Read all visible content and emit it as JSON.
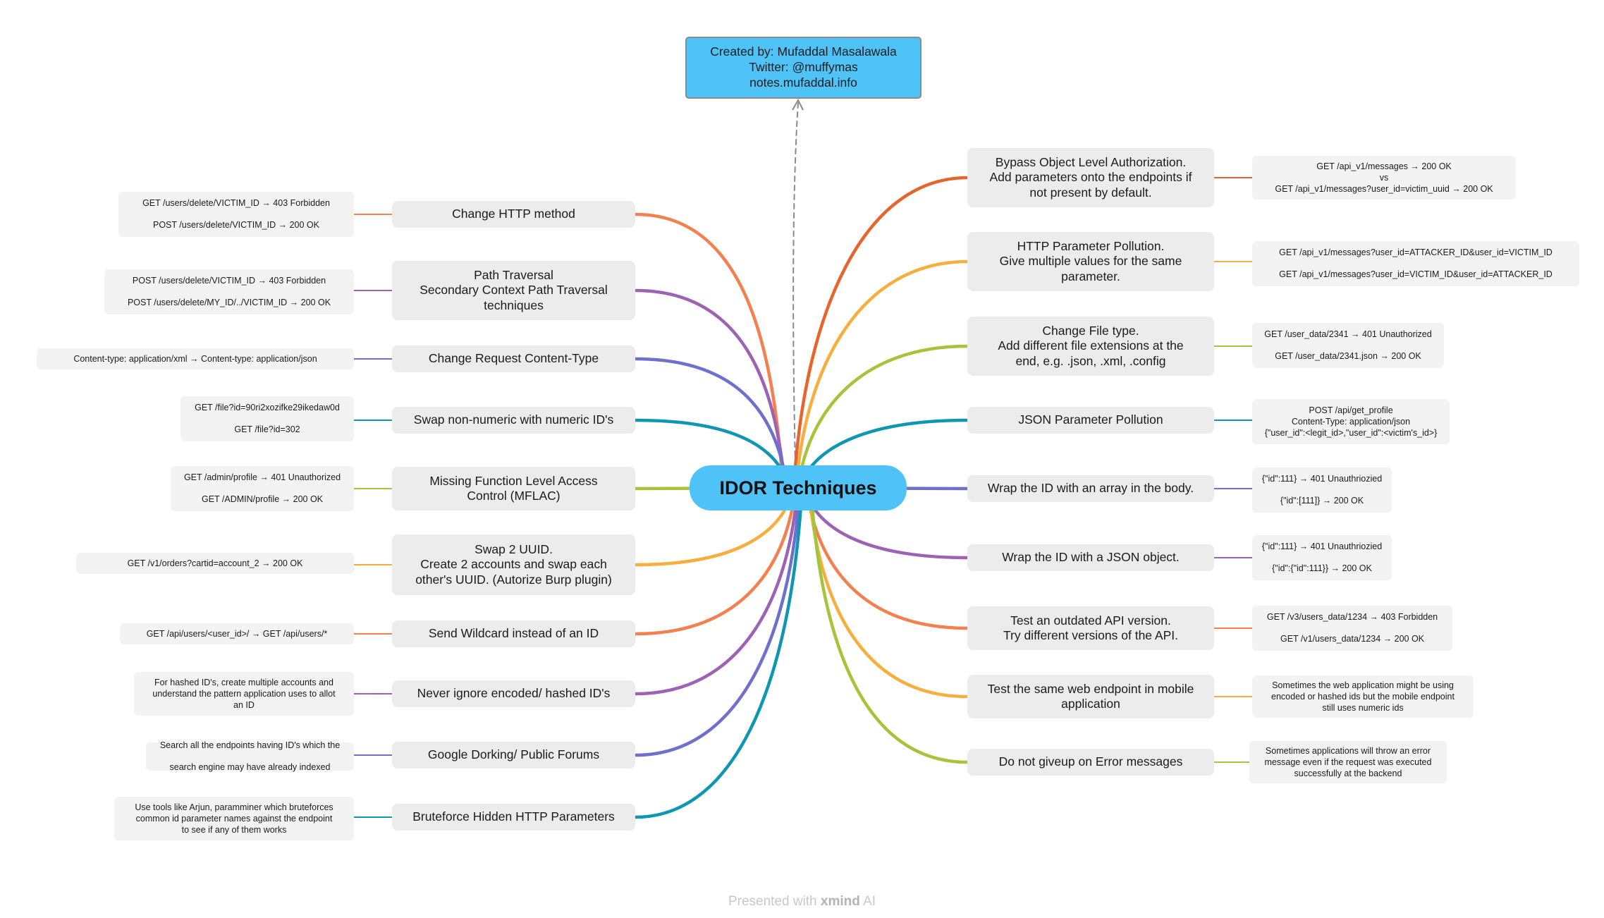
{
  "central": "IDOR Techniques",
  "credits": "Created by: Mufaddal Masalawala\nTwitter: @muffymas\nnotes.mufaddal.info",
  "footer": {
    "prefix": "Presented with ",
    "brand": "xmind",
    "suffix": " AI"
  },
  "colors": [
    "#f4804f",
    "#9d62b3",
    "#6f6fcd",
    "#0f96b3",
    "#a6c43a",
    "#f7ae3d",
    "#e8642d"
  ],
  "left": [
    {
      "topic": "Change HTTP method",
      "note": "GET /users/delete/VICTIM_ID → 403 Forbidden\nPOST /users/delete/VICTIM_ID → 200 OK",
      "color": "#f4804f"
    },
    {
      "topic": "Path Traversal\nSecondary Context Path Traversal\ntechniques",
      "note": "POST /users/delete/VICTIM_ID → 403 Forbidden\nPOST /users/delete/MY_ID/../VICTIM_ID → 200 OK",
      "color": "#9d62b3"
    },
    {
      "topic": "Change Request Content-Type",
      "note": "Content-type: application/xml → Content-type: application/json",
      "color": "#6f6fcd"
    },
    {
      "topic": "Swap non-numeric with numeric ID's",
      "note": "GET /file?id=90ri2xozifke29ikedaw0d\nGET /file?id=302",
      "color": "#0f96b3"
    },
    {
      "topic": "Missing Function Level Access\nControl (MFLAC)",
      "note": "GET /admin/profile → 401 Unauthorized\nGET /ADMIN/profile → 200 OK",
      "color": "#a6c43a"
    },
    {
      "topic": "Swap 2 UUID.\nCreate 2 accounts and swap each\nother's UUID. (Autorize Burp plugin)",
      "note": "GET /v1/orders?cartid=account_2 → 200 OK",
      "color": "#f7ae3d"
    },
    {
      "topic": "Send Wildcard instead of an ID",
      "note": "GET /api/users/<user_id>/ → GET /api/users/*",
      "color": "#f4804f"
    },
    {
      "topic": "Never ignore encoded/ hashed ID's",
      "note": "For hashed ID's, create multiple accounts and\nunderstand the pattern application uses to allot\nan ID",
      "color": "#9d62b3"
    },
    {
      "topic": "Google Dorking/ Public Forums",
      "note": "Search all the endpoints having ID's which the\nsearch engine may have already indexed",
      "color": "#6f6fcd"
    },
    {
      "topic": "Bruteforce Hidden HTTP Parameters",
      "note": "Use tools like Arjun, paramminer which bruteforces\ncommon id parameter names against the endpoint\nto see if any of them works",
      "color": "#0f96b3"
    }
  ],
  "right": [
    {
      "topic": "Bypass Object Level Authorization.\nAdd parameters onto the endpoints if\nnot present by default.",
      "note": "GET /api_v1/messages → 200 OK\nvs\nGET /api_v1/messages?user_id=victim_uuid → 200 OK",
      "color": "#e8642d"
    },
    {
      "topic": "HTTP Parameter Pollution.\nGive multiple values for the same\nparameter.",
      "note": "GET /api_v1/messages?user_id=ATTACKER_ID&user_id=VICTIM_ID\nGET /api_v1/messages?user_id=VICTIM_ID&user_id=ATTACKER_ID",
      "color": "#f7ae3d"
    },
    {
      "topic": "Change File type.\nAdd different file extensions at the\nend, e.g. .json, .xml, .config",
      "note": "GET /user_data/2341 → 401 Unauthorized\nGET /user_data/2341.json → 200 OK",
      "color": "#a6c43a"
    },
    {
      "topic": "JSON Parameter Pollution",
      "note": "POST /api/get_profile\nContent-Type: application/json\n{\"user_id\":<legit_id>,\"user_id\":<victim's_id>}",
      "color": "#0f96b3"
    },
    {
      "topic": "Wrap the ID with an array in the body.",
      "note": "{\"id\":111} → 401 Unauthriozied\n{\"id\":[111]} → 200 OK",
      "color": "#6f6fcd"
    },
    {
      "topic": "Wrap the ID with a JSON object.",
      "note": "{\"id\":111} → 401 Unauthriozied\n{\"id\":{\"id\":111}} → 200 OK",
      "color": "#9d62b3"
    },
    {
      "topic": "Test an outdated API version.\nTry different versions of the API.",
      "note": "GET /v3/users_data/1234 → 403 Forbidden\nGET /v1/users_data/1234 → 200 OK",
      "color": "#f4804f"
    },
    {
      "topic": "Test the same web endpoint in mobile\napplication",
      "note": "Sometimes the web application might be using\nencoded or hashed ids but the mobile endpoint\nstill uses numeric ids",
      "color": "#f7ae3d"
    },
    {
      "topic": "Do not giveup on Error messages",
      "note": "Sometimes applications will throw an error\nmessage even if the request was executed\nsuccessfully at the backend",
      "color": "#a6c43a"
    }
  ]
}
